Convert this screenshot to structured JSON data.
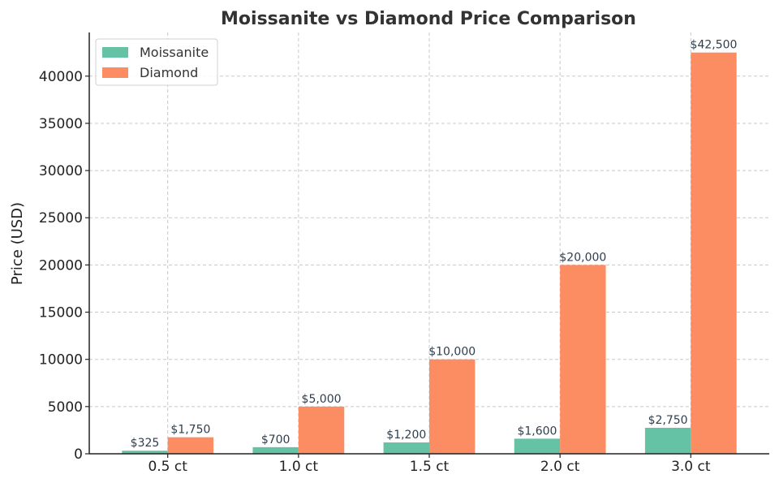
{
  "chart_data": {
    "type": "bar",
    "title": "Moissanite vs Diamond Price Comparison",
    "xlabel": "",
    "ylabel": "Price (USD)",
    "categories": [
      "0.5 ct",
      "1.0 ct",
      "1.5 ct",
      "2.0 ct",
      "3.0 ct"
    ],
    "series": [
      {
        "name": "Moissanite",
        "color": "#66c2a5",
        "values": [
          325,
          700,
          1200,
          1600,
          2750
        ],
        "labels": [
          "$325",
          "$700",
          "$1,200",
          "$1,600",
          "$2,750"
        ]
      },
      {
        "name": "Diamond",
        "color": "#fc8d62",
        "values": [
          1750,
          5000,
          10000,
          20000,
          42500
        ],
        "labels": [
          "$1,750",
          "$5,000",
          "$10,000",
          "$20,000",
          "$42,500"
        ]
      }
    ],
    "yticks": [
      0,
      5000,
      10000,
      15000,
      20000,
      25000,
      30000,
      35000,
      40000
    ],
    "ylim": [
      0,
      44625
    ],
    "grid": true,
    "legend_position": "top-left"
  }
}
